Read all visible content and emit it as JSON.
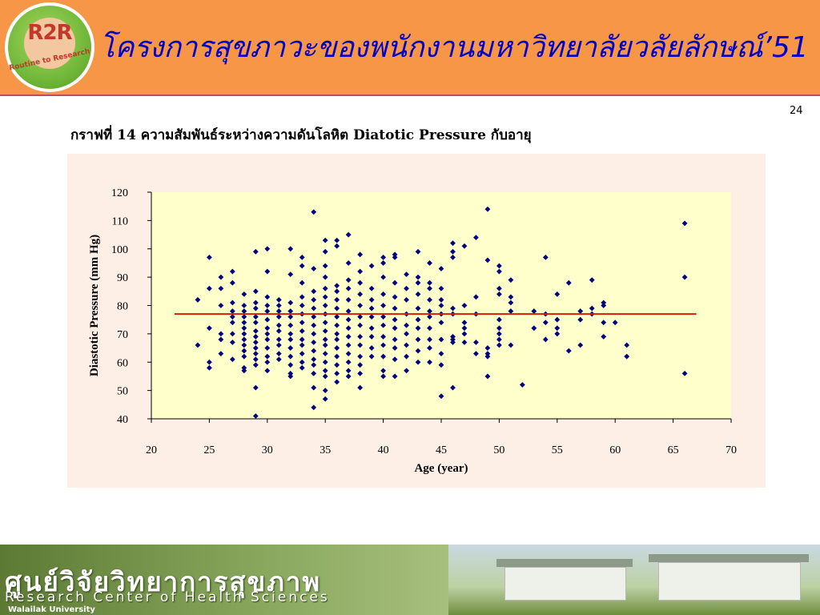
{
  "header": {
    "title": "โครงการสุขภาวะของพนักงานมหาวิทยาลัยวลัยลักษณ์’51",
    "logo_main": "R2R",
    "logo_sub": "Routine to Research",
    "background_color": "#f79646",
    "title_color": "#0000c8"
  },
  "page_number": "24",
  "caption": "กราฟที่ 14  ความสัมพันธ์ระหว่างความดันโลหิต Diatotic Pressure กับอายุ",
  "footer": {
    "thai_text": "ศูนย์วิจัยวิทยาการสุขภาพ",
    "english_text": "Research Center of Health Sciences",
    "university_text": "Walailak University"
  },
  "chart_data": {
    "type": "scatter",
    "xlabel": "Age (year)",
    "ylabel": "Diastotic Pressure (mm Hg)",
    "xlim": [
      20,
      70
    ],
    "ylim": [
      40,
      120
    ],
    "xticks": [
      20,
      25,
      30,
      35,
      40,
      45,
      50,
      55,
      60,
      65,
      70
    ],
    "yticks": [
      40,
      50,
      60,
      70,
      80,
      90,
      100,
      110,
      120
    ],
    "grid": false,
    "legend": "none",
    "plot_background": "#ffffcc",
    "panel_background": "#fdeee6",
    "marker_color": "#000080",
    "trend_line": {
      "x": [
        22,
        67
      ],
      "y": [
        77,
        77
      ],
      "color": "#cc2200"
    },
    "points": [
      [
        24,
        82
      ],
      [
        24,
        66
      ],
      [
        25,
        97
      ],
      [
        25,
        86
      ],
      [
        25,
        72
      ],
      [
        25,
        60
      ],
      [
        25,
        58
      ],
      [
        26,
        90
      ],
      [
        26,
        86
      ],
      [
        26,
        80
      ],
      [
        26,
        70
      ],
      [
        26,
        68
      ],
      [
        26,
        63
      ],
      [
        27,
        92
      ],
      [
        27,
        88
      ],
      [
        27,
        81
      ],
      [
        27,
        78
      ],
      [
        27,
        76
      ],
      [
        27,
        74
      ],
      [
        27,
        70
      ],
      [
        27,
        67
      ],
      [
        27,
        61
      ],
      [
        28,
        84
      ],
      [
        28,
        80
      ],
      [
        28,
        78
      ],
      [
        28,
        76
      ],
      [
        28,
        74
      ],
      [
        28,
        72
      ],
      [
        28,
        70
      ],
      [
        28,
        68
      ],
      [
        28,
        66
      ],
      [
        28,
        64
      ],
      [
        28,
        62
      ],
      [
        28,
        58
      ],
      [
        28,
        57
      ],
      [
        29,
        99
      ],
      [
        29,
        85
      ],
      [
        29,
        81
      ],
      [
        29,
        79
      ],
      [
        29,
        76
      ],
      [
        29,
        74
      ],
      [
        29,
        71
      ],
      [
        29,
        69
      ],
      [
        29,
        67
      ],
      [
        29,
        65
      ],
      [
        29,
        63
      ],
      [
        29,
        61
      ],
      [
        29,
        59
      ],
      [
        29,
        51
      ],
      [
        29,
        41
      ],
      [
        30,
        100
      ],
      [
        30,
        92
      ],
      [
        30,
        83
      ],
      [
        30,
        80
      ],
      [
        30,
        78
      ],
      [
        30,
        75
      ],
      [
        30,
        72
      ],
      [
        30,
        70
      ],
      [
        30,
        68
      ],
      [
        30,
        65
      ],
      [
        30,
        62
      ],
      [
        30,
        60
      ],
      [
        30,
        57
      ],
      [
        31,
        82
      ],
      [
        31,
        80
      ],
      [
        31,
        78
      ],
      [
        31,
        76
      ],
      [
        31,
        73
      ],
      [
        31,
        71
      ],
      [
        31,
        68
      ],
      [
        31,
        66
      ],
      [
        31,
        63
      ],
      [
        31,
        61
      ],
      [
        32,
        100
      ],
      [
        32,
        91
      ],
      [
        32,
        81
      ],
      [
        32,
        78
      ],
      [
        32,
        76
      ],
      [
        32,
        73
      ],
      [
        32,
        70
      ],
      [
        32,
        68
      ],
      [
        32,
        65
      ],
      [
        32,
        62
      ],
      [
        32,
        59
      ],
      [
        32,
        56
      ],
      [
        32,
        55
      ],
      [
        33,
        97
      ],
      [
        33,
        94
      ],
      [
        33,
        88
      ],
      [
        33,
        83
      ],
      [
        33,
        80
      ],
      [
        33,
        77
      ],
      [
        33,
        74
      ],
      [
        33,
        71
      ],
      [
        33,
        68
      ],
      [
        33,
        66
      ],
      [
        33,
        63
      ],
      [
        33,
        60
      ],
      [
        33,
        58
      ],
      [
        34,
        113
      ],
      [
        34,
        93
      ],
      [
        34,
        85
      ],
      [
        34,
        82
      ],
      [
        34,
        79
      ],
      [
        34,
        76
      ],
      [
        34,
        73
      ],
      [
        34,
        70
      ],
      [
        34,
        67
      ],
      [
        34,
        64
      ],
      [
        34,
        61
      ],
      [
        34,
        59
      ],
      [
        34,
        56
      ],
      [
        34,
        51
      ],
      [
        34,
        44
      ],
      [
        35,
        103
      ],
      [
        35,
        99
      ],
      [
        35,
        94
      ],
      [
        35,
        90
      ],
      [
        35,
        86
      ],
      [
        35,
        83
      ],
      [
        35,
        80
      ],
      [
        35,
        77
      ],
      [
        35,
        74
      ],
      [
        35,
        71
      ],
      [
        35,
        68
      ],
      [
        35,
        66
      ],
      [
        35,
        63
      ],
      [
        35,
        60
      ],
      [
        35,
        57
      ],
      [
        35,
        55
      ],
      [
        35,
        50
      ],
      [
        35,
        47
      ],
      [
        36,
        103
      ],
      [
        36,
        101
      ],
      [
        36,
        87
      ],
      [
        36,
        85
      ],
      [
        36,
        82
      ],
      [
        36,
        79
      ],
      [
        36,
        76
      ],
      [
        36,
        73
      ],
      [
        36,
        70
      ],
      [
        36,
        68
      ],
      [
        36,
        65
      ],
      [
        36,
        62
      ],
      [
        36,
        59
      ],
      [
        36,
        56
      ],
      [
        36,
        53
      ],
      [
        37,
        105
      ],
      [
        37,
        95
      ],
      [
        37,
        89
      ],
      [
        37,
        86
      ],
      [
        37,
        82
      ],
      [
        37,
        78
      ],
      [
        37,
        75
      ],
      [
        37,
        72
      ],
      [
        37,
        69
      ],
      [
        37,
        66
      ],
      [
        37,
        63
      ],
      [
        37,
        60
      ],
      [
        37,
        57
      ],
      [
        37,
        55
      ],
      [
        38,
        98
      ],
      [
        38,
        92
      ],
      [
        38,
        88
      ],
      [
        38,
        84
      ],
      [
        38,
        80
      ],
      [
        38,
        76
      ],
      [
        38,
        73
      ],
      [
        38,
        69
      ],
      [
        38,
        66
      ],
      [
        38,
        62
      ],
      [
        38,
        59
      ],
      [
        38,
        56
      ],
      [
        38,
        51
      ],
      [
        39,
        94
      ],
      [
        39,
        86
      ],
      [
        39,
        82
      ],
      [
        39,
        79
      ],
      [
        39,
        76
      ],
      [
        39,
        72
      ],
      [
        39,
        69
      ],
      [
        39,
        65
      ],
      [
        39,
        62
      ],
      [
        40,
        97
      ],
      [
        40,
        95
      ],
      [
        40,
        90
      ],
      [
        40,
        84
      ],
      [
        40,
        80
      ],
      [
        40,
        76
      ],
      [
        40,
        73
      ],
      [
        40,
        69
      ],
      [
        40,
        66
      ],
      [
        40,
        62
      ],
      [
        40,
        57
      ],
      [
        40,
        55
      ],
      [
        41,
        98
      ],
      [
        41,
        97
      ],
      [
        41,
        88
      ],
      [
        41,
        83
      ],
      [
        41,
        79
      ],
      [
        41,
        75
      ],
      [
        41,
        72
      ],
      [
        41,
        68
      ],
      [
        41,
        65
      ],
      [
        41,
        61
      ],
      [
        41,
        55
      ],
      [
        42,
        91
      ],
      [
        42,
        86
      ],
      [
        42,
        82
      ],
      [
        42,
        77
      ],
      [
        42,
        73
      ],
      [
        42,
        70
      ],
      [
        42,
        66
      ],
      [
        42,
        62
      ],
      [
        42,
        57
      ],
      [
        43,
        99
      ],
      [
        43,
        90
      ],
      [
        43,
        88
      ],
      [
        43,
        84
      ],
      [
        43,
        79
      ],
      [
        43,
        75
      ],
      [
        43,
        72
      ],
      [
        43,
        68
      ],
      [
        43,
        64
      ],
      [
        43,
        60
      ],
      [
        44,
        95
      ],
      [
        44,
        88
      ],
      [
        44,
        86
      ],
      [
        44,
        82
      ],
      [
        44,
        78
      ],
      [
        44,
        76
      ],
      [
        44,
        72
      ],
      [
        44,
        68
      ],
      [
        44,
        65
      ],
      [
        44,
        60
      ],
      [
        45,
        93
      ],
      [
        45,
        86
      ],
      [
        45,
        82
      ],
      [
        45,
        80
      ],
      [
        45,
        77
      ],
      [
        45,
        74
      ],
      [
        45,
        68
      ],
      [
        45,
        63
      ],
      [
        45,
        59
      ],
      [
        45,
        48
      ],
      [
        46,
        102
      ],
      [
        46,
        99
      ],
      [
        46,
        97
      ],
      [
        46,
        79
      ],
      [
        46,
        77
      ],
      [
        46,
        69
      ],
      [
        46,
        68
      ],
      [
        46,
        67
      ],
      [
        46,
        51
      ],
      [
        47,
        101
      ],
      [
        47,
        80
      ],
      [
        47,
        74
      ],
      [
        47,
        72
      ],
      [
        47,
        70
      ],
      [
        47,
        67
      ],
      [
        48,
        104
      ],
      [
        48,
        83
      ],
      [
        48,
        77
      ],
      [
        48,
        67
      ],
      [
        48,
        63
      ],
      [
        49,
        114
      ],
      [
        49,
        96
      ],
      [
        49,
        65
      ],
      [
        49,
        63
      ],
      [
        49,
        62
      ],
      [
        49,
        55
      ],
      [
        50,
        94
      ],
      [
        50,
        92
      ],
      [
        50,
        86
      ],
      [
        50,
        84
      ],
      [
        50,
        75
      ],
      [
        50,
        72
      ],
      [
        50,
        70
      ],
      [
        50,
        68
      ],
      [
        50,
        66
      ],
      [
        51,
        89
      ],
      [
        51,
        83
      ],
      [
        51,
        81
      ],
      [
        51,
        78
      ],
      [
        51,
        66
      ],
      [
        52,
        52
      ],
      [
        53,
        78
      ],
      [
        53,
        72
      ],
      [
        54,
        97
      ],
      [
        54,
        77
      ],
      [
        54,
        74
      ],
      [
        54,
        68
      ],
      [
        55,
        84
      ],
      [
        55,
        75
      ],
      [
        55,
        72
      ],
      [
        55,
        70
      ],
      [
        56,
        88
      ],
      [
        56,
        64
      ],
      [
        57,
        78
      ],
      [
        57,
        75
      ],
      [
        57,
        66
      ],
      [
        58,
        89
      ],
      [
        58,
        79
      ],
      [
        58,
        77
      ],
      [
        59,
        81
      ],
      [
        59,
        80
      ],
      [
        59,
        74
      ],
      [
        59,
        69
      ],
      [
        60,
        74
      ],
      [
        61,
        66
      ],
      [
        61,
        62
      ],
      [
        66,
        109
      ],
      [
        66,
        90
      ],
      [
        66,
        56
      ]
    ]
  }
}
